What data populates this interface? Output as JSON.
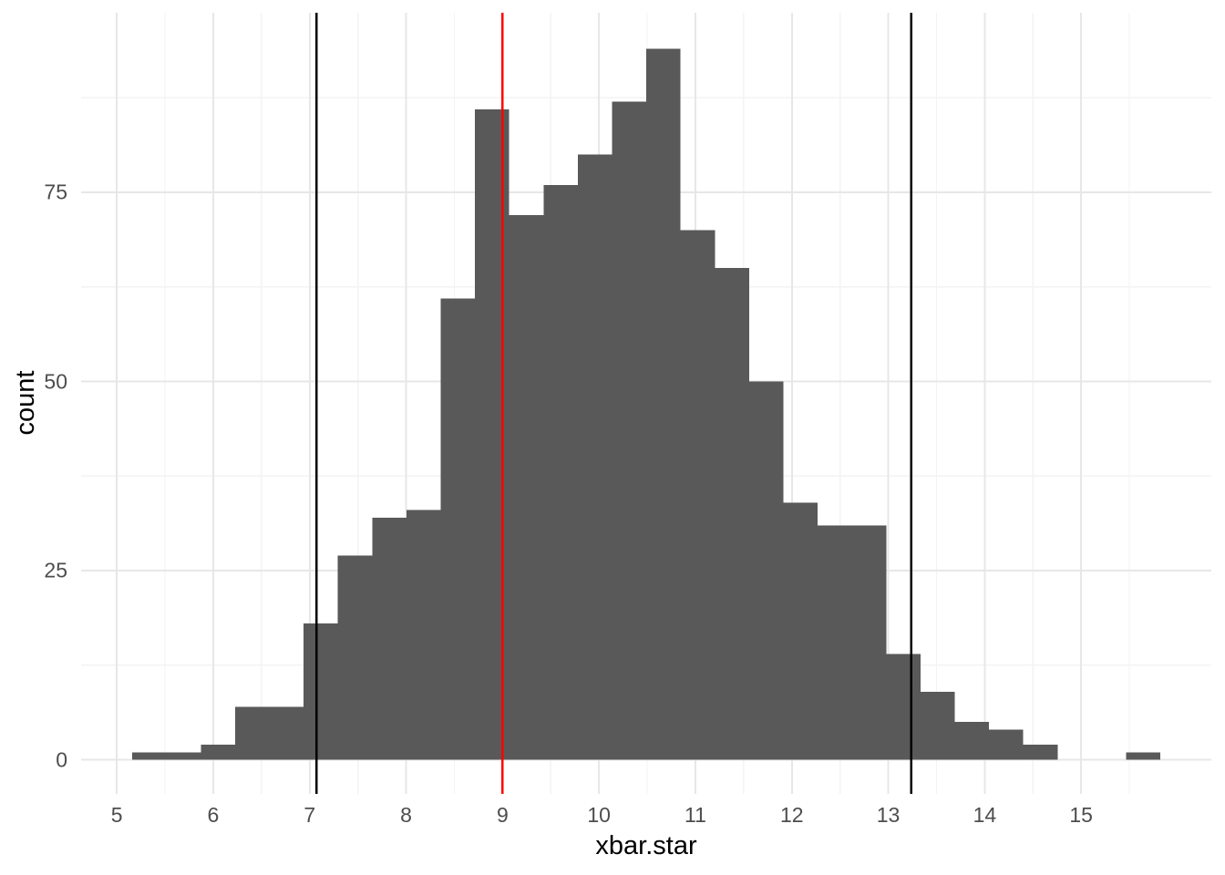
{
  "chart_data": {
    "type": "bar",
    "subtype": "histogram",
    "title": "",
    "xlabel": "xbar.star",
    "ylabel": "count",
    "bin_start": 5.16,
    "bin_width": 0.3554,
    "counts": [
      1,
      1,
      2,
      7,
      7,
      18,
      27,
      32,
      33,
      61,
      86,
      72,
      76,
      80,
      87,
      94,
      70,
      65,
      50,
      34,
      31,
      31,
      14,
      9,
      5,
      4,
      2,
      0,
      0,
      1
    ],
    "x_ticks": [
      5,
      6,
      7,
      8,
      9,
      10,
      11,
      12,
      13,
      14,
      15
    ],
    "y_ticks": [
      0,
      25,
      50,
      75
    ],
    "x_range": [
      4.63,
      16.35
    ],
    "y_range": [
      -4.5,
      98.75
    ],
    "grid": true,
    "legend": "none",
    "vlines": [
      {
        "x": 7.07,
        "color": "#000000"
      },
      {
        "x": 9.0,
        "color": "#FF0000"
      },
      {
        "x": 13.24,
        "color": "#000000"
      }
    ],
    "colors": {
      "bar_fill": "#595959",
      "grid_major": "#E7E7E7",
      "grid_minor": "#F3F3F3",
      "tick_label": "#4D4D4D",
      "axis_title": "#000000",
      "background": "#FFFFFF"
    }
  }
}
